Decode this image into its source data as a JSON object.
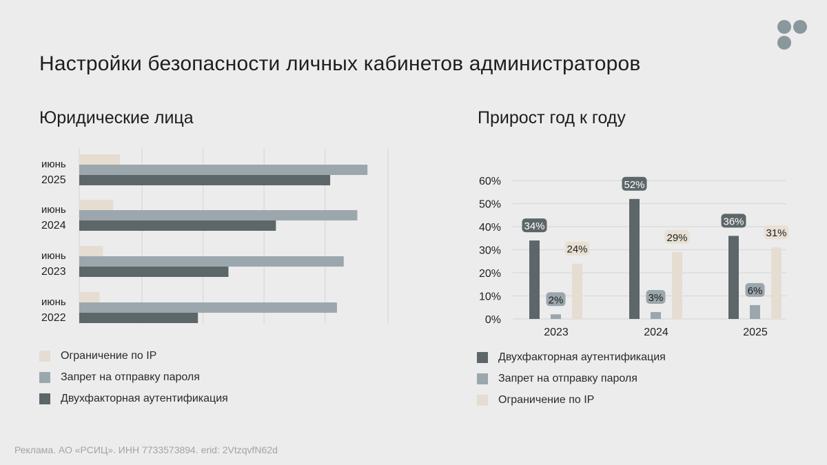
{
  "header": {
    "title": "Настройки безопасности личных кабинетов администраторов"
  },
  "colors": {
    "ip": "#e5ddd2",
    "password": "#9ba7ad",
    "twofa": "#5d6669",
    "label_bg_dark": "#5d6669",
    "label_bg_mid": "#9ba7ad",
    "label_bg_light": "#e8e0d4",
    "logo": "#8a979d"
  },
  "footer": {
    "text": "Реклама. АО «РСИЦ». ИНН 7733573894. erid: 2VtzqvfN62d"
  },
  "chart_data": [
    {
      "type": "bar",
      "orientation": "horizontal",
      "title": "Юридические лица",
      "categories": [
        [
          "июнь",
          "2025"
        ],
        [
          "июнь",
          "2024"
        ],
        [
          "июнь",
          "2023"
        ],
        [
          "июнь",
          "2022"
        ]
      ],
      "series": [
        {
          "name": "Ограничение по IP",
          "color_key": "ip",
          "values": [
            12,
            10,
            7,
            6
          ]
        },
        {
          "name": "Запрет на отправку пароля",
          "color_key": "password",
          "values": [
            85,
            82,
            78,
            76
          ]
        },
        {
          "name": "Двухфакторная аутентификация",
          "color_key": "twofa",
          "values": [
            74,
            58,
            44,
            35
          ]
        }
      ],
      "xlim": [
        0,
        100
      ],
      "grid": true,
      "legend": [
        "Ограничение по IP",
        "Запрет на отправку пароля",
        "Двухфакторная аутентификация"
      ]
    },
    {
      "type": "bar",
      "orientation": "vertical",
      "title": "Прирост год к году",
      "categories": [
        "2023",
        "2024",
        "2025"
      ],
      "series": [
        {
          "name": "Двухфакторная аутентификация",
          "color_key": "twofa",
          "values": [
            34,
            52,
            36
          ],
          "labels": [
            "34%",
            "52%",
            "36%"
          ],
          "label_style": "dark"
        },
        {
          "name": "Запрет на отправку пароля",
          "color_key": "password",
          "values": [
            2,
            3,
            6
          ],
          "labels": [
            "2%",
            "3%",
            "6%"
          ],
          "label_style": "mid"
        },
        {
          "name": "Ограничение по IP",
          "color_key": "ip",
          "values": [
            24,
            29,
            31
          ],
          "labels": [
            "24%",
            "29%",
            "31%"
          ],
          "label_style": "light"
        }
      ],
      "yticks": [
        "0%",
        "10%",
        "20%",
        "30%",
        "40%",
        "50%",
        "60%"
      ],
      "ylim": [
        0,
        60
      ],
      "grid": true,
      "legend": [
        "Двухфакторная аутентификация",
        "Запрет на отправку пароля",
        "Ограничение по IP"
      ]
    }
  ]
}
